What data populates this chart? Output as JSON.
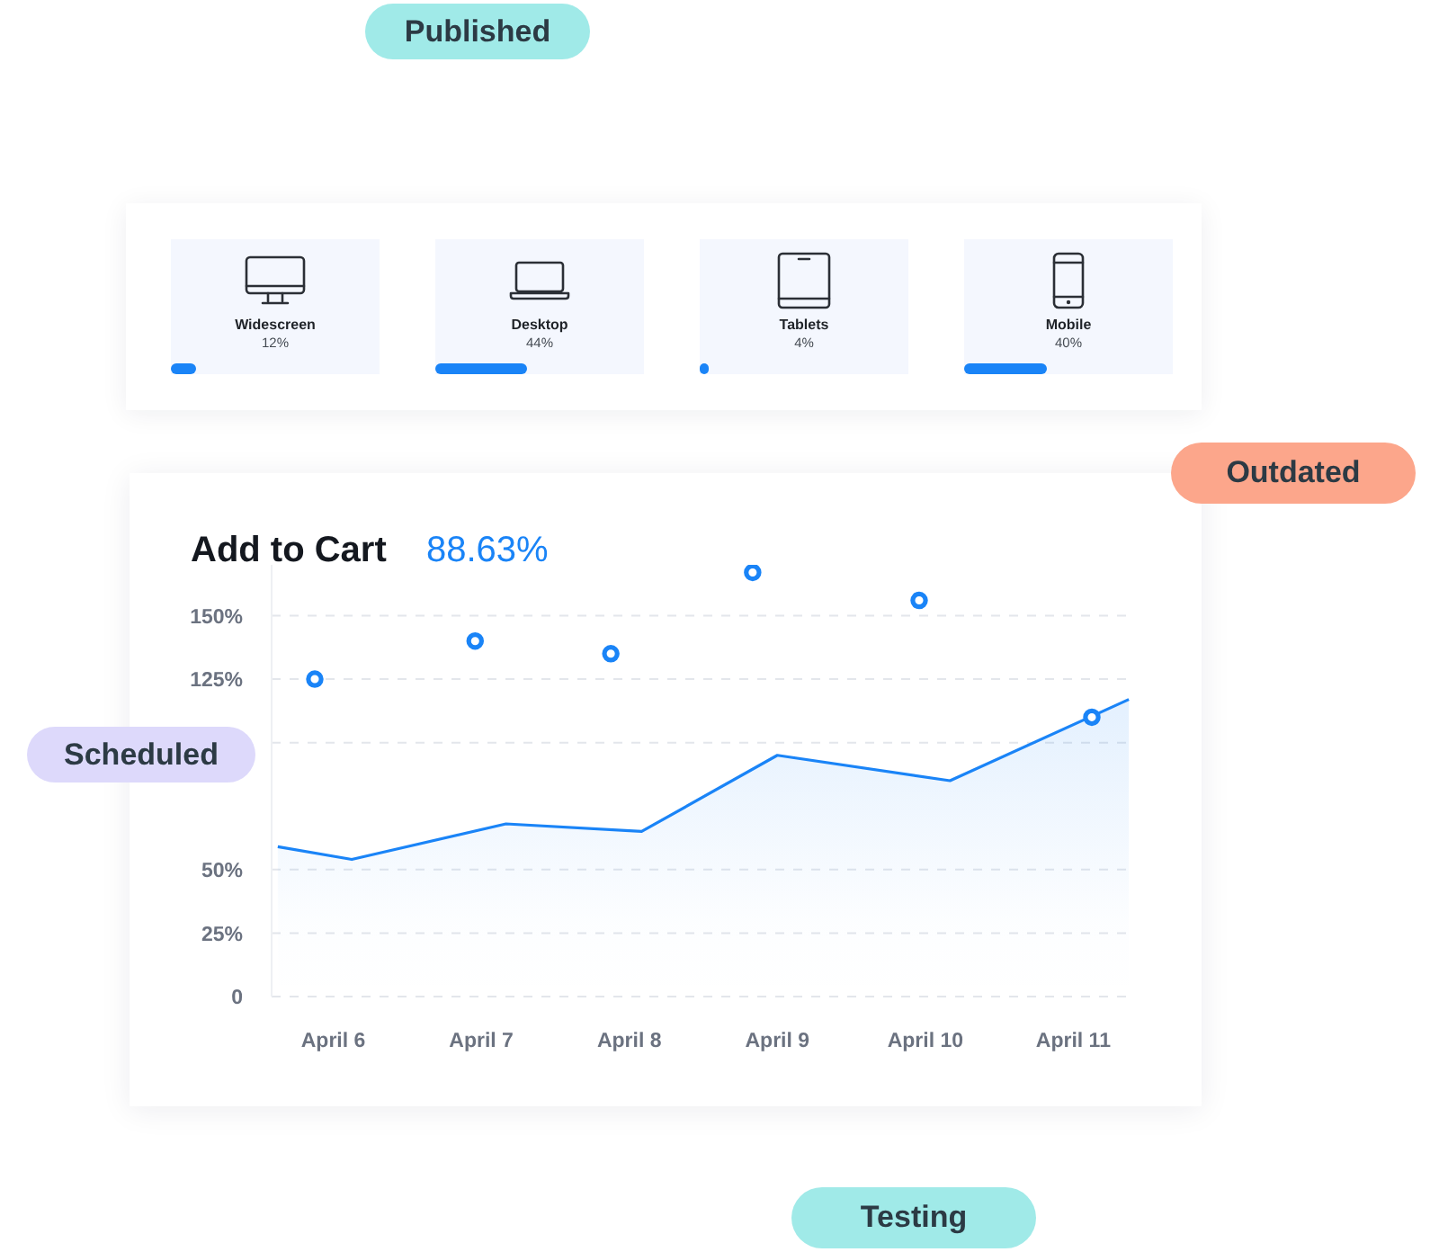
{
  "chart_data": [
    {
      "type": "other",
      "categories": [
        "Widescreen",
        "Desktop",
        "Tablets",
        "Mobile"
      ],
      "values": [
        12,
        44,
        4,
        40
      ],
      "value_labels": [
        "12%",
        "44%",
        "4%",
        "40%"
      ]
    },
    {
      "type": "area",
      "title": "Add to Cart",
      "subtitle": "88.63%",
      "annotations": [
        "Published",
        "Outdated",
        "Scheduled",
        "Testing"
      ],
      "xlim": [
        "--04-05T14:00",
        "--04-11T10:00"
      ],
      "xticks": [
        {
          "value": "--04-06",
          "label": "April 6"
        },
        {
          "value": "--04-07",
          "label": "April 7"
        },
        {
          "value": "--04-08",
          "label": "April 8"
        },
        {
          "value": "--04-09",
          "label": "April 9"
        },
        {
          "value": "--04-10",
          "label": "April 10"
        },
        {
          "value": "--04-11",
          "label": "April 11"
        }
      ],
      "ylim": [
        0,
        170
      ],
      "yticks": [
        0,
        {
          "value": 25,
          "label": "25%"
        },
        {
          "value": 50,
          "label": "50%"
        },
        {
          "value": 100,
          "label": null
        },
        {
          "value": 125,
          "label": "125%"
        },
        {
          "value": 150,
          "label": "150%"
        }
      ],
      "grid": "y",
      "series": [
        {
          "type": "area",
          "color": "#1a84f7",
          "x": [
            "--04-05T15:00",
            "--04-06T03:00",
            "--04-07T04:00",
            "--04-08T02:00",
            "--04-09T00:00",
            "--04-10T04:00",
            "--04-11T09:00"
          ],
          "values": [
            59,
            54,
            68,
            65,
            95,
            85,
            117
          ]
        },
        {
          "type": "scatter",
          "color": "#1a84f7",
          "marker": "circle",
          "x": [
            "--04-05T21:00",
            "--04-06T23:00",
            "--04-07T21:00",
            "--04-08T20:00",
            "--04-09T23:00",
            "--04-11T03:00"
          ],
          "values": [
            125,
            140,
            135,
            167,
            156,
            110
          ]
        }
      ]
    }
  ]
}
